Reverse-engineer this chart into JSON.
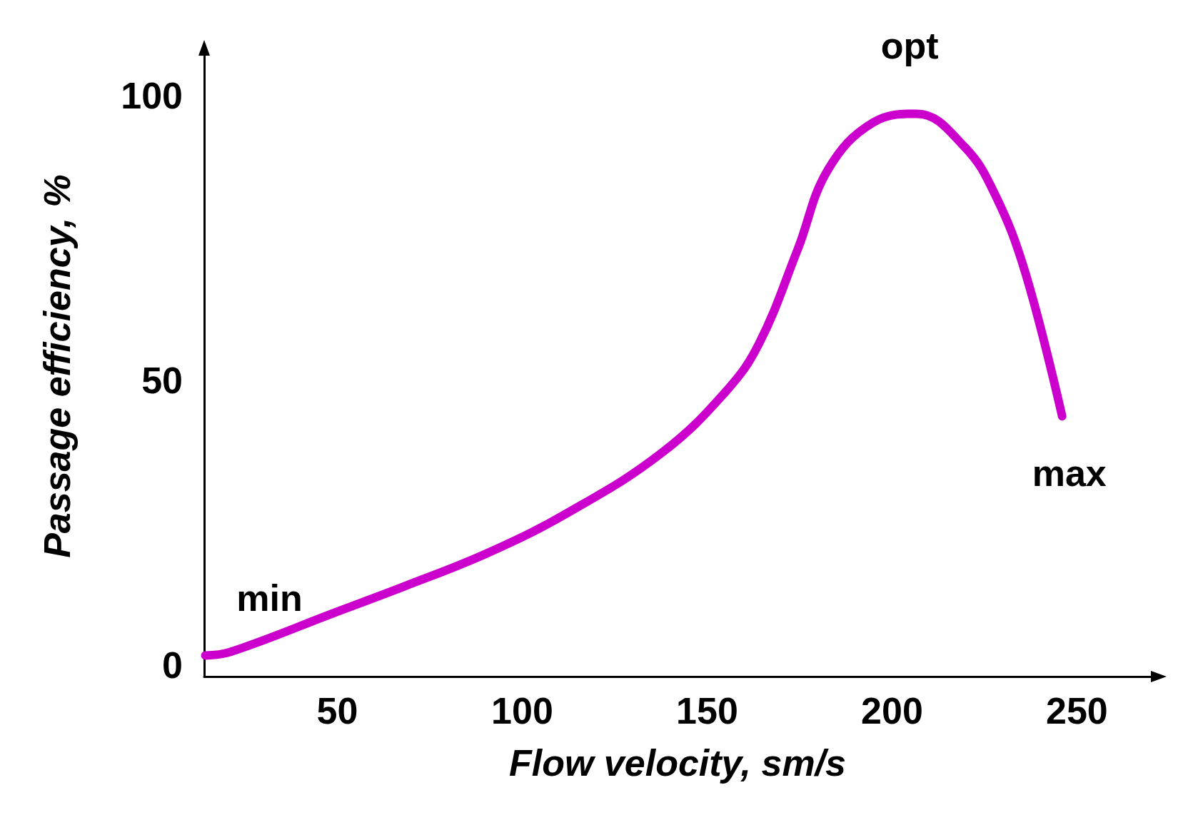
{
  "chart_data": {
    "type": "line",
    "xlabel": "Flow velocity, sm/s",
    "ylabel": "Passage efficiency, %",
    "x": [
      14.3,
      21,
      49.6,
      68,
      90.7,
      113,
      137.8,
      155,
      164,
      174.5,
      182.7,
      195,
      206.7,
      219.6,
      227.8,
      236,
      246
    ],
    "series": [
      {
        "color": "#cc00cc",
        "values": [
          1.7,
          2.3,
          9.3,
          13.8,
          19.7,
          27,
          37.3,
          48,
          56.4,
          73,
          87,
          95.3,
          96.8,
          91,
          82.7,
          69,
          43.7
        ]
      }
    ],
    "xlim": [
      14,
      270
    ],
    "xticks": [
      50,
      100,
      150,
      200,
      250
    ],
    "ylim": [
      -2,
      107
    ],
    "yticks": [
      0,
      50,
      100
    ],
    "annotations": [
      {
        "text": "min",
        "x": 14.3,
        "y": 1.7
      },
      {
        "text": "opt",
        "x": 206.7,
        "y": 96.8
      },
      {
        "text": "max",
        "x": 246,
        "y": 43.7
      }
    ],
    "grid": false,
    "line_style": "solid"
  }
}
